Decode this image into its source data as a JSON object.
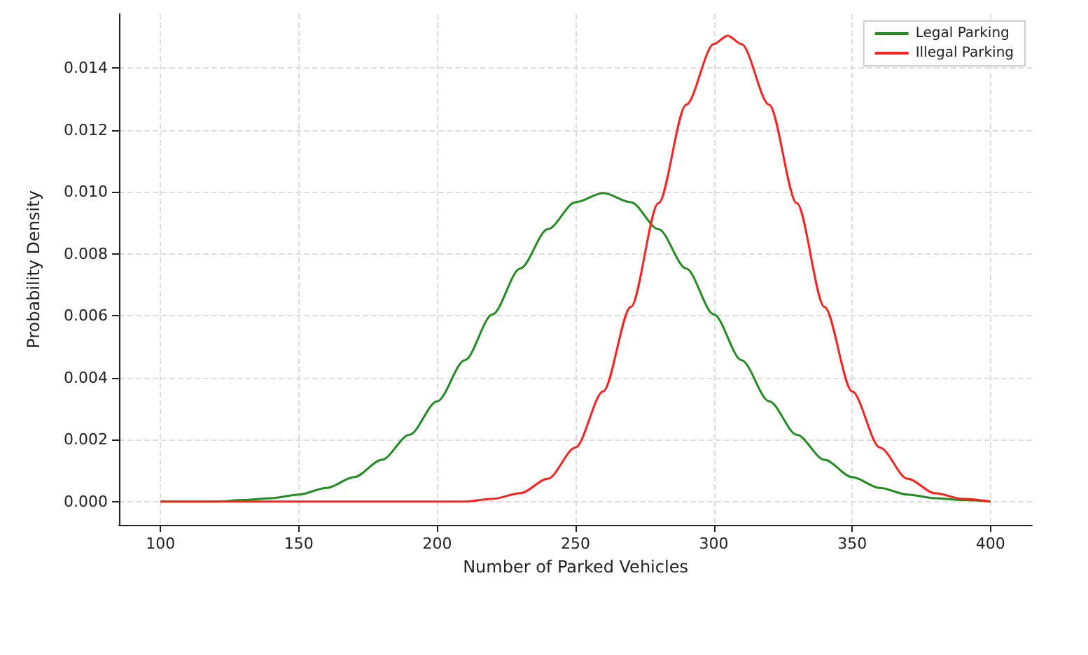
{
  "chart_data": {
    "type": "line",
    "xlabel": "Number of Parked Vehicles",
    "ylabel": "Probability Density",
    "series": [
      {
        "name": "Legal Parking",
        "color": "#228b22",
        "x": [
          100,
          110,
          120,
          130,
          140,
          150,
          160,
          170,
          180,
          190,
          200,
          210,
          220,
          230,
          240,
          250,
          260,
          270,
          280,
          290,
          300,
          310,
          320,
          330,
          340,
          350,
          360,
          370,
          380,
          390,
          400
        ],
        "values": [
          0,
          0,
          0,
          5e-05,
          0.00011,
          0.00023,
          0.00044,
          0.00079,
          0.00135,
          0.00216,
          0.00324,
          0.00457,
          0.00605,
          0.00753,
          0.0088,
          0.00967,
          0.00997,
          0.00967,
          0.0088,
          0.00753,
          0.00605,
          0.00457,
          0.00324,
          0.00216,
          0.00135,
          0.00079,
          0.00044,
          0.00023,
          0.00011,
          5e-05,
          0
        ]
      },
      {
        "name": "Illegal Parking",
        "color": "#ff2020",
        "x": [
          100,
          150,
          200,
          210,
          220,
          230,
          240,
          250,
          260,
          270,
          280,
          290,
          300,
          305,
          310,
          320,
          330,
          340,
          350,
          360,
          370,
          380,
          390,
          400
        ],
        "values": [
          0,
          0,
          0,
          0,
          9e-05,
          0.00027,
          0.00074,
          0.00175,
          0.00356,
          0.00629,
          0.00964,
          0.01282,
          0.01478,
          0.01505,
          0.01478,
          0.01282,
          0.00964,
          0.00629,
          0.00356,
          0.00175,
          0.00074,
          0.00027,
          9e-05,
          0
        ]
      }
    ],
    "xlim": [
      85,
      415
    ],
    "xticks": [
      100,
      150,
      200,
      250,
      300,
      350,
      400
    ],
    "ylim": [
      -0.00075,
      0.01575
    ],
    "yticks": [
      {
        "value": 0,
        "label": "0.000"
      },
      {
        "value": 0.002,
        "label": "0.002"
      },
      {
        "value": 0.004,
        "label": "0.004"
      },
      {
        "value": 0.006,
        "label": "0.006"
      },
      {
        "value": 0.008,
        "label": "0.008"
      },
      {
        "value": 0.01,
        "label": "0.010"
      },
      {
        "value": 0.012,
        "label": "0.012"
      },
      {
        "value": 0.014,
        "label": "0.014"
      }
    ],
    "grid": true,
    "legend": "top right",
    "marker": "none",
    "line_style": "solid"
  }
}
